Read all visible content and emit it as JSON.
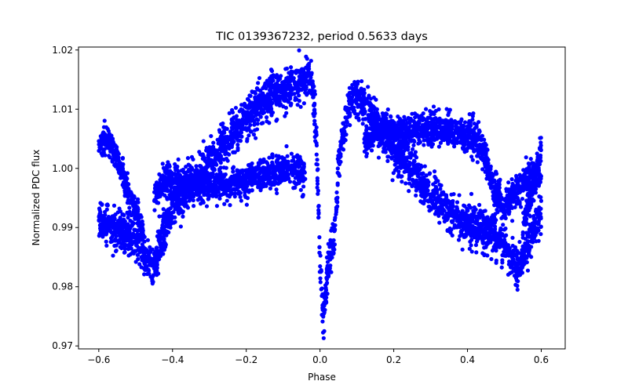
{
  "chart_data": {
    "type": "scatter",
    "title": "TIC 0139367232, period 0.5633 days",
    "xlabel": "Phase",
    "ylabel": "Normalized PDC flux",
    "xlim": [
      -0.655,
      0.665
    ],
    "ylim": [
      0.9695,
      1.0205
    ],
    "xticks": [
      -0.6,
      -0.4,
      -0.2,
      0.0,
      0.2,
      0.4,
      0.6
    ],
    "xtick_labels": [
      "−0.6",
      "−0.4",
      "−0.2",
      "0.0",
      "0.2",
      "0.4",
      "0.6"
    ],
    "yticks": [
      0.97,
      0.98,
      0.99,
      1.0,
      1.01,
      1.02
    ],
    "ytick_labels": [
      "0.97",
      "0.98",
      "0.99",
      "1.00",
      "1.01",
      "1.02"
    ],
    "grid": false,
    "marker_color": "#0000ff",
    "series": [
      {
        "name": "",
        "branches": [
          {
            "role": "main",
            "x": [
              -0.6,
              -0.55,
              -0.5,
              -0.47,
              -0.45,
              -0.42,
              -0.4,
              -0.35,
              -0.3,
              -0.25,
              -0.2,
              -0.15,
              -0.1,
              -0.07,
              -0.05,
              -0.03,
              -0.02,
              -0.01,
              0.0,
              0.01,
              0.02,
              0.03,
              0.04,
              0.05,
              0.06,
              0.08,
              0.1,
              0.15,
              0.2,
              0.25,
              0.3,
              0.35,
              0.4,
              0.45,
              0.47,
              0.5,
              0.52,
              0.53,
              0.55,
              0.57,
              0.6
            ],
            "y": [
              0.991,
              0.9895,
              0.9885,
              0.984,
              0.9835,
              0.99,
              0.994,
              0.997,
              1.001,
              1.005,
              1.0085,
              1.0115,
              1.013,
              1.0145,
              1.015,
              1.0155,
              1.0145,
              1.005,
              0.984,
              0.974,
              0.983,
              0.9865,
              0.988,
              1.0,
              1.005,
              1.011,
              1.0125,
              1.008,
              1.0035,
              0.9995,
              0.9955,
              0.9925,
              0.9905,
              0.989,
              0.9895,
              0.987,
              0.985,
              0.983,
              0.984,
              0.988,
              0.993
            ],
            "spread": 0.0017
          },
          {
            "role": "lower-band",
            "x": [
              -0.45,
              -0.42,
              -0.4,
              -0.35,
              -0.3,
              -0.25,
              -0.2,
              -0.15,
              -0.1,
              -0.06,
              -0.04
            ],
            "y": [
              0.9955,
              0.998,
              0.998,
              0.9975,
              0.997,
              0.997,
              0.998,
              0.999,
              0.9995,
              1.0,
              0.9985
            ],
            "spread": 0.0013
          },
          {
            "role": "upper-band",
            "x": [
              0.12,
              0.15,
              0.2,
              0.25,
              0.3,
              0.35,
              0.4,
              0.43,
              0.45,
              0.47,
              0.5,
              0.53,
              0.56,
              0.58,
              0.6
            ],
            "y": [
              1.0045,
              1.0065,
              1.0065,
              1.0065,
              1.0065,
              1.0065,
              1.0055,
              1.0045,
              1.0015,
              0.997,
              0.993,
              0.996,
              0.998,
              0.999,
              0.998
            ],
            "spread": 0.0014
          },
          {
            "role": "early-drop",
            "x": [
              -0.6,
              -0.58,
              -0.56,
              -0.54,
              -0.52,
              -0.5,
              -0.48
            ],
            "y": [
              1.0045,
              1.005,
              1.003,
              1.0,
              0.996,
              0.993,
              0.989
            ],
            "spread": 0.0012
          },
          {
            "role": "late-rise",
            "x": [
              0.55,
              0.57,
              0.59,
              0.6
            ],
            "y": [
              0.99,
              0.995,
              1.0,
              1.0035
            ],
            "spread": 0.0013
          }
        ]
      }
    ]
  }
}
